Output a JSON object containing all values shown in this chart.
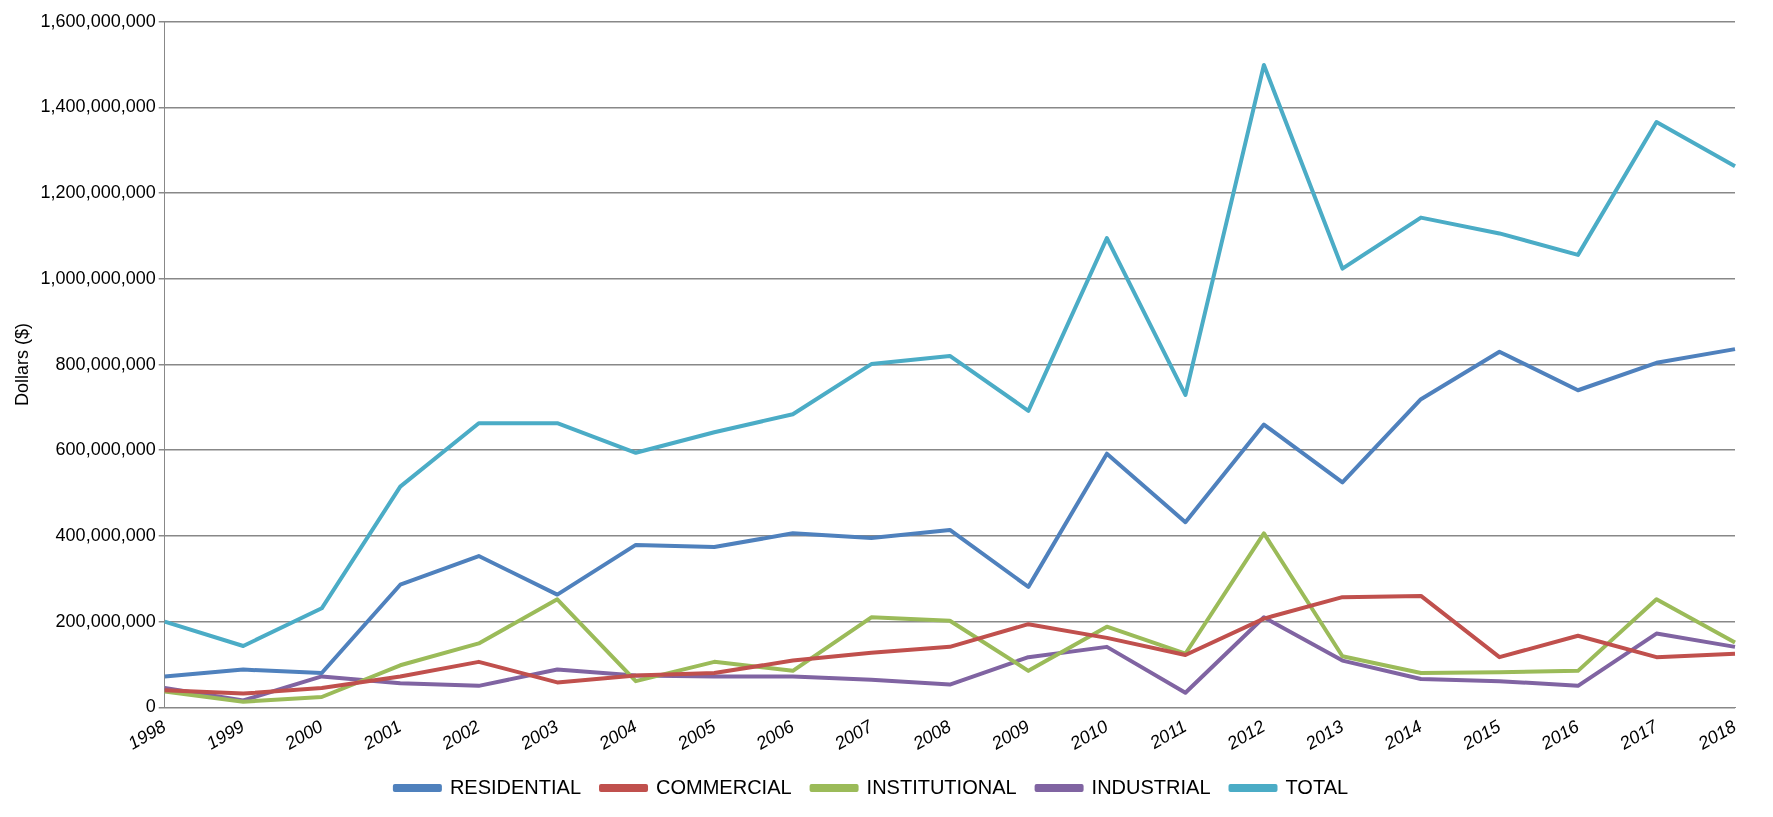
{
  "chart_data": {
    "type": "line",
    "ylabel": "Dollars ($)",
    "categories": [
      "1998",
      "1999",
      "2000",
      "2001",
      "2002",
      "2003",
      "2004",
      "2005",
      "2006",
      "2007",
      "2008",
      "2009",
      "2010",
      "2011",
      "2012",
      "2013",
      "2014",
      "2015",
      "2016",
      "2017",
      "2018"
    ],
    "series": [
      {
        "name": "RESIDENTIAL",
        "color": "#4f81bd",
        "values": [
          72000000,
          88000000,
          80000000,
          286000000,
          353000000,
          263000000,
          379000000,
          374000000,
          406000000,
          395000000,
          414000000,
          281000000,
          592000000,
          432000000,
          660000000,
          525000000,
          719000000,
          830000000,
          740000000,
          804000000,
          836000000
        ]
      },
      {
        "name": "COMMERCIAL",
        "color": "#c0504d",
        "values": [
          40000000,
          32000000,
          45000000,
          72000000,
          106000000,
          58000000,
          74000000,
          80000000,
          109000000,
          127000000,
          141000000,
          194000000,
          162000000,
          122000000,
          207000000,
          257000000,
          260000000,
          117000000,
          167000000,
          117000000,
          125000000
        ]
      },
      {
        "name": "INSTITUTIONAL",
        "color": "#9bbb59",
        "values": [
          37000000,
          13000000,
          24000000,
          98000000,
          149000000,
          252000000,
          61000000,
          106000000,
          85000000,
          210000000,
          202000000,
          85000000,
          188000000,
          125000000,
          406000000,
          119000000,
          80000000,
          82000000,
          85000000,
          252000000,
          151000000
        ]
      },
      {
        "name": "INDUSTRIAL",
        "color": "#8064a2",
        "values": [
          45000000,
          16000000,
          72000000,
          56000000,
          50000000,
          88000000,
          74000000,
          72000000,
          72000000,
          64000000,
          53000000,
          117000000,
          141000000,
          34000000,
          210000000,
          109000000,
          66000000,
          61000000,
          50000000,
          172000000,
          141000000
        ]
      },
      {
        "name": "TOTAL",
        "color": "#4bacc6",
        "values": [
          200000000,
          143000000,
          231000000,
          515000000,
          663000000,
          663000000,
          594000000,
          642000000,
          684000000,
          801000000,
          820000000,
          692000000,
          1095000000,
          729000000,
          1499000000,
          1024000000,
          1143000000,
          1106000000,
          1056000000,
          1366000000,
          1263000000
        ]
      }
    ],
    "ylim": [
      0,
      1600000000
    ],
    "yticks": [
      0,
      {
        "value": 200000000,
        "label": "200,000,000"
      },
      {
        "value": 400000000,
        "label": "400,000,000"
      },
      {
        "value": 600000000,
        "label": "600,000,000"
      },
      {
        "value": 800000000,
        "label": "800,000,000"
      },
      {
        "value": 1000000000,
        "label": "1,000,000,000"
      },
      {
        "value": 1200000000,
        "label": "1,200,000,000"
      },
      {
        "value": 1400000000,
        "label": "1,400,000,000"
      },
      {
        "value": 1600000000,
        "label": "1,600,000,000"
      }
    ],
    "grid": "y",
    "legend": "bottom",
    "marker": "none",
    "line_style": "solid"
  }
}
